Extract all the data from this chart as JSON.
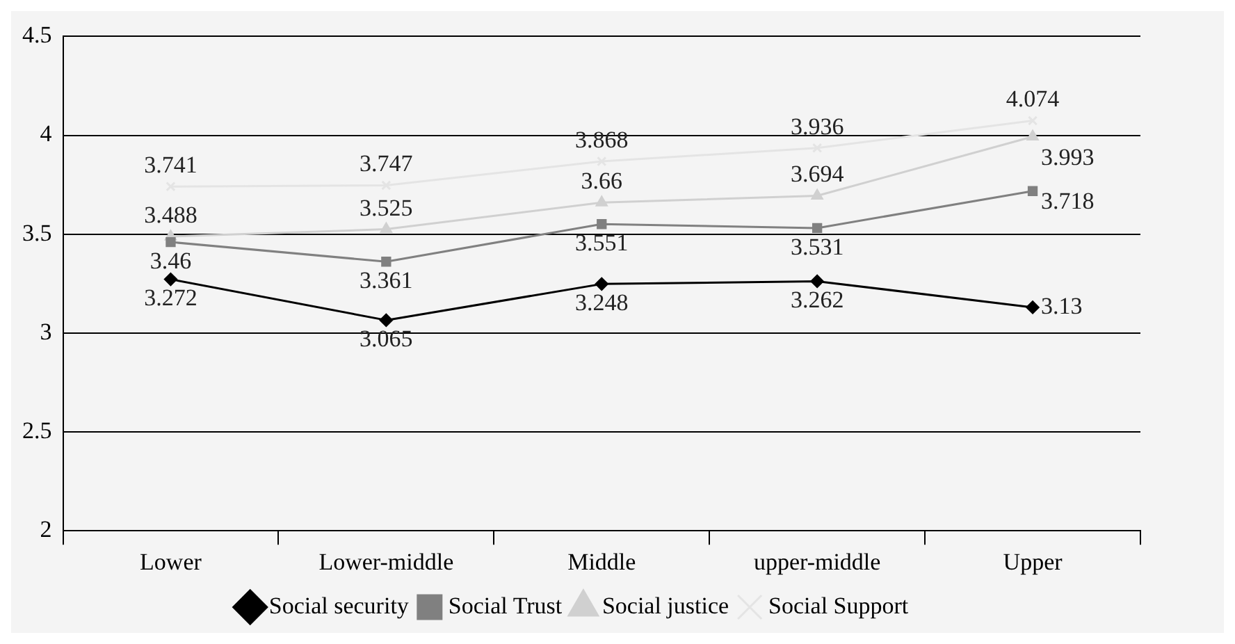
{
  "chart_data": {
    "type": "line",
    "categories": [
      "Lower",
      "Lower-middle",
      "Middle",
      "upper-middle",
      "Upper"
    ],
    "series": [
      {
        "name": "Social security",
        "color": "#000000",
        "marker": "diamond",
        "values": [
          3.272,
          3.065,
          3.248,
          3.262,
          3.13
        ]
      },
      {
        "name": "Social Trust",
        "color": "#808080",
        "marker": "square",
        "values": [
          3.46,
          3.361,
          3.551,
          3.531,
          3.718
        ]
      },
      {
        "name": "Social justice",
        "color": "#d0d0d0",
        "marker": "triangle",
        "values": [
          3.488,
          3.525,
          3.66,
          3.694,
          3.993
        ]
      },
      {
        "name": "Social Support",
        "color": "#e4e4e4",
        "marker": "cross",
        "values": [
          3.741,
          3.747,
          3.868,
          3.936,
          4.074
        ]
      }
    ],
    "ylim": [
      2,
      4.5
    ],
    "yticks": [
      2,
      2.5,
      3,
      3.5,
      4,
      4.5
    ],
    "grid": "y",
    "legend": "bottom",
    "data_labels": true
  }
}
